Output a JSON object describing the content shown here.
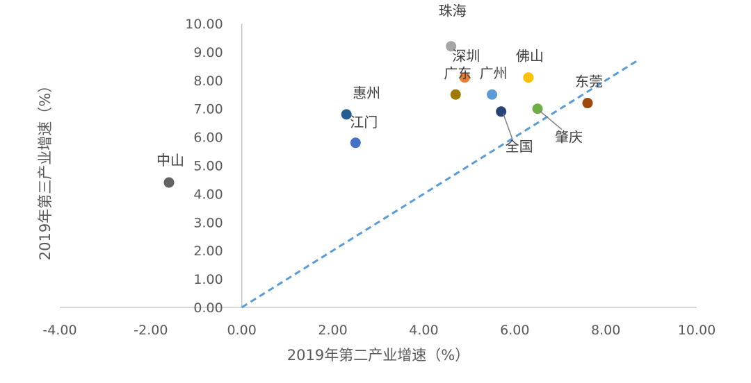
{
  "chart_data": {
    "type": "scatter",
    "title": "",
    "xlabel": "2019年第二产业增速（%）",
    "ylabel": "2019年第三产业增速（%）",
    "xlim": [
      -4,
      10
    ],
    "ylim": [
      0,
      10
    ],
    "x_ticks": [
      -4,
      -2,
      0,
      2,
      4,
      6,
      8,
      10
    ],
    "y_ticks": [
      0,
      1,
      2,
      3,
      4,
      5,
      6,
      7,
      8,
      9,
      10
    ],
    "x_tick_labels": [
      "-4.00",
      "-2.00",
      "0.00",
      "2.00",
      "4.00",
      "6.00",
      "8.00",
      "10.00"
    ],
    "y_tick_labels": [
      "0.00",
      "1.00",
      "2.00",
      "3.00",
      "4.00",
      "5.00",
      "6.00",
      "7.00",
      "8.00",
      "9.00",
      "10.00"
    ],
    "grid": false,
    "reference_line": {
      "style": "dashed",
      "color": "#5B9BD5",
      "equation": "y = x"
    },
    "points": [
      {
        "label": "珠海",
        "x": 4.6,
        "y": 9.2,
        "color": "#A5A5A5"
      },
      {
        "label": "深圳",
        "x": 4.9,
        "y": 8.1,
        "color": "#ED7D31"
      },
      {
        "label": "佛山",
        "x": 6.3,
        "y": 8.1,
        "color": "#FFC000"
      },
      {
        "label": "广州",
        "x": 5.5,
        "y": 7.5,
        "color": "#5B9BD5"
      },
      {
        "label": "广东",
        "x": 4.7,
        "y": 7.5,
        "color": "#9E7B00"
      },
      {
        "label": "东莞",
        "x": 7.6,
        "y": 7.2,
        "color": "#9E480E"
      },
      {
        "label": "全国",
        "x": 5.7,
        "y": 6.9,
        "color": "#264478"
      },
      {
        "label": "肇庆",
        "x": 6.5,
        "y": 7.0,
        "color": "#70AD47"
      },
      {
        "label": "惠州",
        "x": 2.3,
        "y": 6.8,
        "color": "#255E91"
      },
      {
        "label": "江门",
        "x": 2.5,
        "y": 5.8,
        "color": "#4472C4"
      },
      {
        "label": "中山",
        "x": -1.6,
        "y": 4.4,
        "color": "#636363"
      }
    ]
  }
}
